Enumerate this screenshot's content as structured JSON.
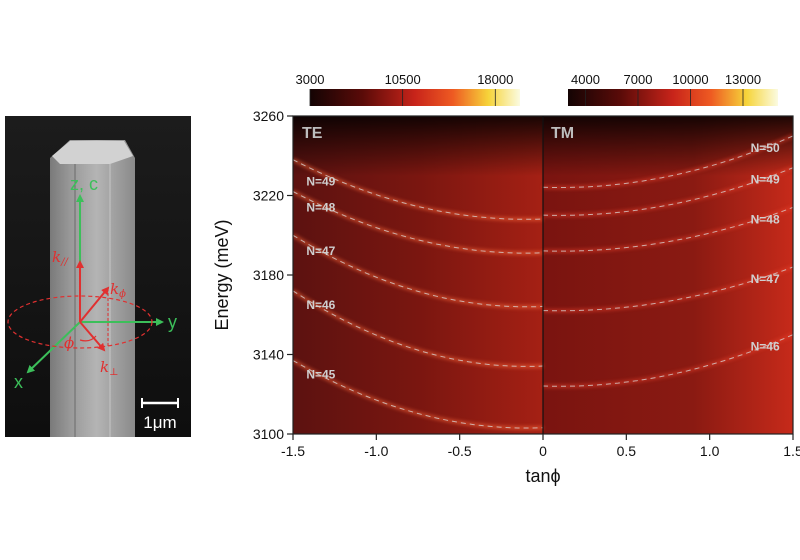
{
  "chart_data": {
    "type": "heatmap",
    "xlabel": "tanϕ",
    "ylabel": "Energy (meV)",
    "xlim": [
      -1.5,
      1.5
    ],
    "ylim": [
      3100,
      3260
    ],
    "x_ticks": [
      "-1.5",
      "-1.0",
      "-0.5",
      "0",
      "0.5",
      "1.0",
      "1.5"
    ],
    "x_tick_values": [
      -1.5,
      -1.0,
      -0.5,
      0,
      0.5,
      1.0,
      1.5
    ],
    "y_ticks": [
      "3100",
      "3140",
      "3180",
      "3220",
      "3260"
    ],
    "y_tick_values": [
      3100,
      3140,
      3180,
      3220,
      3260
    ],
    "panels": [
      {
        "label": "TE",
        "x_range": [
          -1.5,
          0
        ],
        "colorbar": {
          "ticks": [
            "3000",
            "10500",
            "18000"
          ],
          "tick_values": [
            3000,
            10500,
            18000
          ],
          "range": [
            3000,
            20000
          ]
        },
        "modes": [
          {
            "label": "N=49",
            "label_x": -1.42,
            "label_y": 3225,
            "edge": 3238,
            "min": 3208
          },
          {
            "label": "N=48",
            "label_x": -1.42,
            "label_y": 3212,
            "edge": 3222,
            "min": 3191
          },
          {
            "label": "N=47",
            "label_x": -1.42,
            "label_y": 3190,
            "edge": 3200,
            "min": 3164
          },
          {
            "label": "N=46",
            "label_x": -1.42,
            "label_y": 3163,
            "edge": 3172,
            "min": 3134
          },
          {
            "label": "N=45",
            "label_x": -1.42,
            "label_y": 3128,
            "edge": 3137,
            "min": 3103
          }
        ]
      },
      {
        "label": "TM",
        "x_range": [
          0,
          1.5
        ],
        "colorbar": {
          "ticks": [
            "4000",
            "7000",
            "10000",
            "13000"
          ],
          "tick_values": [
            4000,
            7000,
            10000,
            13000
          ],
          "range": [
            3000,
            15000
          ]
        },
        "modes": [
          {
            "label": "N=50",
            "label_x": 1.42,
            "label_y": 3242,
            "edge": 3250,
            "min": 3224
          },
          {
            "label": "N=49",
            "label_x": 1.42,
            "label_y": 3226,
            "edge": 3234,
            "min": 3210
          },
          {
            "label": "N=48",
            "label_x": 1.42,
            "label_y": 3206,
            "edge": 3214,
            "min": 3192
          },
          {
            "label": "N=47",
            "label_x": 1.42,
            "label_y": 3176,
            "edge": 3184,
            "min": 3162
          },
          {
            "label": "N=46",
            "label_x": 1.42,
            "label_y": 3142,
            "edge": 3150,
            "min": 3124
          }
        ]
      }
    ]
  },
  "sem_image": {
    "axes": {
      "z": "z, c",
      "y": "y",
      "x": "x"
    },
    "wave_vectors": {
      "k_par": "k",
      "k_par_sub": "//",
      "k_phi": "k",
      "k_phi_sub": "ϕ",
      "k_perp": "k",
      "k_perp_sub": "⊥"
    },
    "angle": "ϕ",
    "scale_bar": "1μm",
    "colors": {
      "axes": "#3cbf5a",
      "vectors": "#e03030"
    }
  }
}
